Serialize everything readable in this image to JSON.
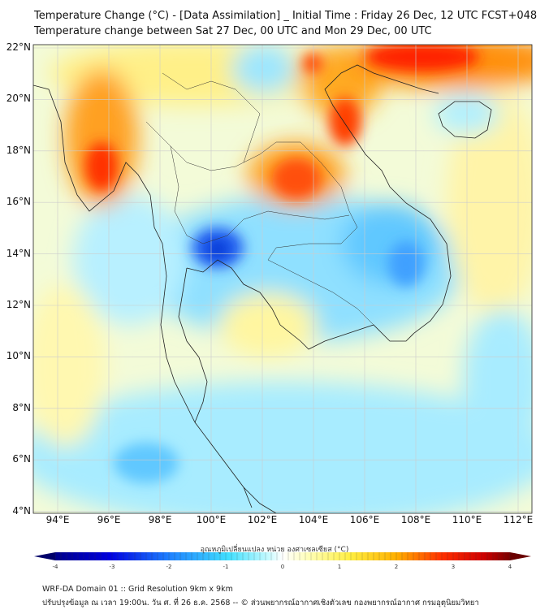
{
  "header": {
    "title": "Temperature Change (°C) - [Data Assimilation] _ Initial Time : Friday 26 Dec, 12 UTC FCST+048",
    "subtitle": "Temperature change between Sat 27 Dec, 00 UTC and Mon 29 Dec, 00 UTC"
  },
  "map": {
    "lat_ticks": [
      "22°N",
      "20°N",
      "18°N",
      "16°N",
      "14°N",
      "12°N",
      "10°N",
      "8°N",
      "6°N",
      "4°N"
    ],
    "lon_ticks": [
      "94°E",
      "96°E",
      "98°E",
      "100°E",
      "102°E",
      "104°E",
      "106°E",
      "108°E",
      "110°E",
      "112°E"
    ],
    "extent_deg": {
      "lon": [
        93,
        112.5
      ],
      "lat": [
        4,
        22.1
      ]
    }
  },
  "colorbar": {
    "label": "อุณหภูมิเปลี่ยนแปลง หน่วย องศาเซลเซียส (°C)",
    "ticks": [
      "-4",
      "-3",
      "-2",
      "-1",
      "0",
      "1",
      "2",
      "3",
      "4"
    ],
    "range": [
      -4,
      4
    ],
    "colors": [
      "#00008b",
      "#0000ff",
      "#1e90ff",
      "#40e0ff",
      "#e0ffff",
      "#ffffff",
      "#ffff80",
      "#ffd700",
      "#ff8c00",
      "#ff0000",
      "#8b0000"
    ]
  },
  "footer": {
    "line1": "WRF-DA Domain 01 :: Grid Resolution 9km x 9km",
    "line2": "ปรับปรุงข้อมูล ณ เวลา 19:00น. วัน ศ. ที่ 26 ธ.ค. 2568 -- © ส่วนพยากรณ์อากาศเชิงตัวเลข กองพยากรณ์อากาศ กรมอุตุนิยมวิทยา"
  }
}
